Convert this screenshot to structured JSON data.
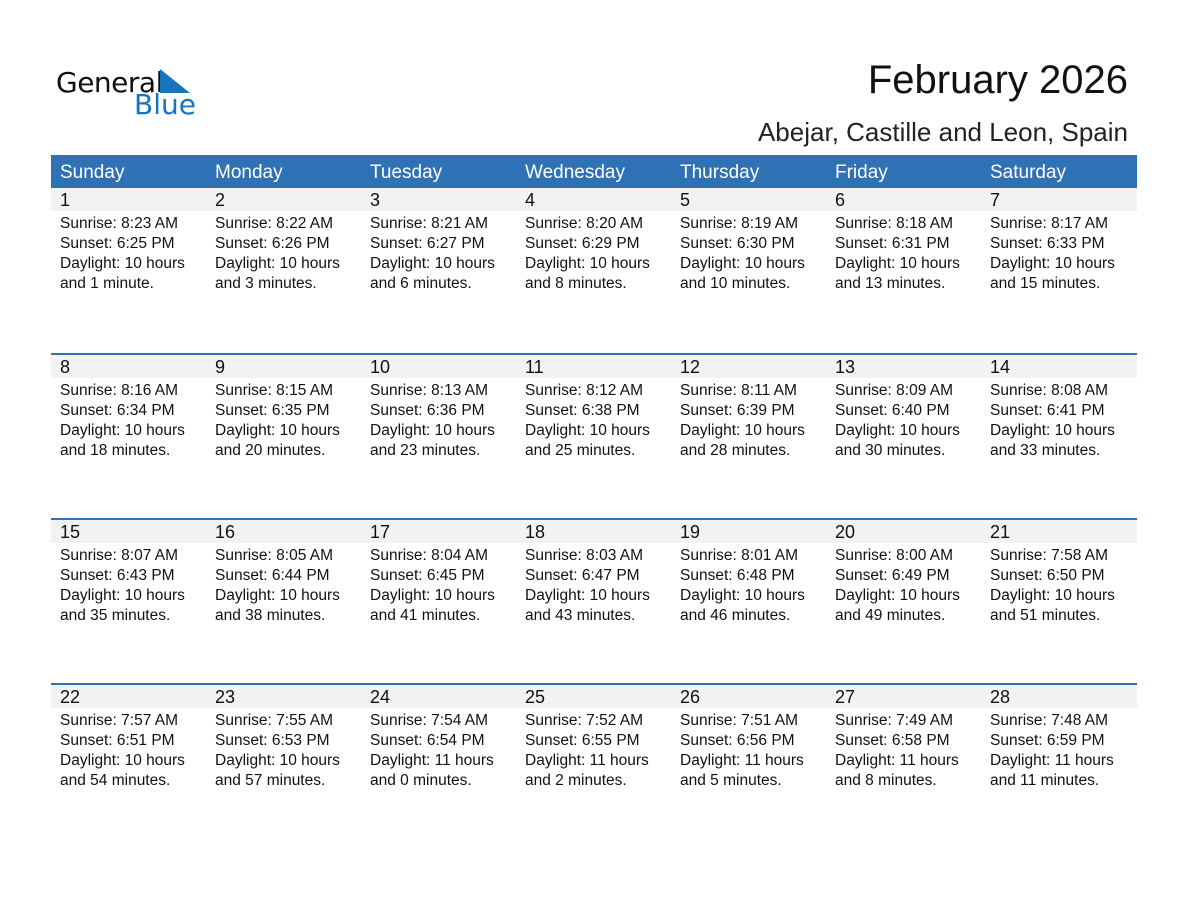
{
  "logo": {
    "line1": "General",
    "line2": "Blue"
  },
  "title": "February 2026",
  "location": "Abejar, Castille and Leon, Spain",
  "colors": {
    "header": "#2e72b5",
    "date_bar": "#f2f2f2",
    "logo_blue": "#1a73c0"
  },
  "weekdays": [
    "Sunday",
    "Monday",
    "Tuesday",
    "Wednesday",
    "Thursday",
    "Friday",
    "Saturday"
  ],
  "weeks": [
    [
      {
        "day": "1",
        "sunrise": "Sunrise: 8:23 AM",
        "sunset": "Sunset: 6:25 PM",
        "daylight": "Daylight: 10 hours",
        "daylight2": "and 1 minute."
      },
      {
        "day": "2",
        "sunrise": "Sunrise: 8:22 AM",
        "sunset": "Sunset: 6:26 PM",
        "daylight": "Daylight: 10 hours",
        "daylight2": "and 3 minutes."
      },
      {
        "day": "3",
        "sunrise": "Sunrise: 8:21 AM",
        "sunset": "Sunset: 6:27 PM",
        "daylight": "Daylight: 10 hours",
        "daylight2": "and 6 minutes."
      },
      {
        "day": "4",
        "sunrise": "Sunrise: 8:20 AM",
        "sunset": "Sunset: 6:29 PM",
        "daylight": "Daylight: 10 hours",
        "daylight2": "and 8 minutes."
      },
      {
        "day": "5",
        "sunrise": "Sunrise: 8:19 AM",
        "sunset": "Sunset: 6:30 PM",
        "daylight": "Daylight: 10 hours",
        "daylight2": "and 10 minutes."
      },
      {
        "day": "6",
        "sunrise": "Sunrise: 8:18 AM",
        "sunset": "Sunset: 6:31 PM",
        "daylight": "Daylight: 10 hours",
        "daylight2": "and 13 minutes."
      },
      {
        "day": "7",
        "sunrise": "Sunrise: 8:17 AM",
        "sunset": "Sunset: 6:33 PM",
        "daylight": "Daylight: 10 hours",
        "daylight2": "and 15 minutes."
      }
    ],
    [
      {
        "day": "8",
        "sunrise": "Sunrise: 8:16 AM",
        "sunset": "Sunset: 6:34 PM",
        "daylight": "Daylight: 10 hours",
        "daylight2": "and 18 minutes."
      },
      {
        "day": "9",
        "sunrise": "Sunrise: 8:15 AM",
        "sunset": "Sunset: 6:35 PM",
        "daylight": "Daylight: 10 hours",
        "daylight2": "and 20 minutes."
      },
      {
        "day": "10",
        "sunrise": "Sunrise: 8:13 AM",
        "sunset": "Sunset: 6:36 PM",
        "daylight": "Daylight: 10 hours",
        "daylight2": "and 23 minutes."
      },
      {
        "day": "11",
        "sunrise": "Sunrise: 8:12 AM",
        "sunset": "Sunset: 6:38 PM",
        "daylight": "Daylight: 10 hours",
        "daylight2": "and 25 minutes."
      },
      {
        "day": "12",
        "sunrise": "Sunrise: 8:11 AM",
        "sunset": "Sunset: 6:39 PM",
        "daylight": "Daylight: 10 hours",
        "daylight2": "and 28 minutes."
      },
      {
        "day": "13",
        "sunrise": "Sunrise: 8:09 AM",
        "sunset": "Sunset: 6:40 PM",
        "daylight": "Daylight: 10 hours",
        "daylight2": "and 30 minutes."
      },
      {
        "day": "14",
        "sunrise": "Sunrise: 8:08 AM",
        "sunset": "Sunset: 6:41 PM",
        "daylight": "Daylight: 10 hours",
        "daylight2": "and 33 minutes."
      }
    ],
    [
      {
        "day": "15",
        "sunrise": "Sunrise: 8:07 AM",
        "sunset": "Sunset: 6:43 PM",
        "daylight": "Daylight: 10 hours",
        "daylight2": "and 35 minutes."
      },
      {
        "day": "16",
        "sunrise": "Sunrise: 8:05 AM",
        "sunset": "Sunset: 6:44 PM",
        "daylight": "Daylight: 10 hours",
        "daylight2": "and 38 minutes."
      },
      {
        "day": "17",
        "sunrise": "Sunrise: 8:04 AM",
        "sunset": "Sunset: 6:45 PM",
        "daylight": "Daylight: 10 hours",
        "daylight2": "and 41 minutes."
      },
      {
        "day": "18",
        "sunrise": "Sunrise: 8:03 AM",
        "sunset": "Sunset: 6:47 PM",
        "daylight": "Daylight: 10 hours",
        "daylight2": "and 43 minutes."
      },
      {
        "day": "19",
        "sunrise": "Sunrise: 8:01 AM",
        "sunset": "Sunset: 6:48 PM",
        "daylight": "Daylight: 10 hours",
        "daylight2": "and 46 minutes."
      },
      {
        "day": "20",
        "sunrise": "Sunrise: 8:00 AM",
        "sunset": "Sunset: 6:49 PM",
        "daylight": "Daylight: 10 hours",
        "daylight2": "and 49 minutes."
      },
      {
        "day": "21",
        "sunrise": "Sunrise: 7:58 AM",
        "sunset": "Sunset: 6:50 PM",
        "daylight": "Daylight: 10 hours",
        "daylight2": "and 51 minutes."
      }
    ],
    [
      {
        "day": "22",
        "sunrise": "Sunrise: 7:57 AM",
        "sunset": "Sunset: 6:51 PM",
        "daylight": "Daylight: 10 hours",
        "daylight2": "and 54 minutes."
      },
      {
        "day": "23",
        "sunrise": "Sunrise: 7:55 AM",
        "sunset": "Sunset: 6:53 PM",
        "daylight": "Daylight: 10 hours",
        "daylight2": "and 57 minutes."
      },
      {
        "day": "24",
        "sunrise": "Sunrise: 7:54 AM",
        "sunset": "Sunset: 6:54 PM",
        "daylight": "Daylight: 11 hours",
        "daylight2": "and 0 minutes."
      },
      {
        "day": "25",
        "sunrise": "Sunrise: 7:52 AM",
        "sunset": "Sunset: 6:55 PM",
        "daylight": "Daylight: 11 hours",
        "daylight2": "and 2 minutes."
      },
      {
        "day": "26",
        "sunrise": "Sunrise: 7:51 AM",
        "sunset": "Sunset: 6:56 PM",
        "daylight": "Daylight: 11 hours",
        "daylight2": "and 5 minutes."
      },
      {
        "day": "27",
        "sunrise": "Sunrise: 7:49 AM",
        "sunset": "Sunset: 6:58 PM",
        "daylight": "Daylight: 11 hours",
        "daylight2": "and 8 minutes."
      },
      {
        "day": "28",
        "sunrise": "Sunrise: 7:48 AM",
        "sunset": "Sunset: 6:59 PM",
        "daylight": "Daylight: 11 hours",
        "daylight2": "and 11 minutes."
      }
    ]
  ]
}
